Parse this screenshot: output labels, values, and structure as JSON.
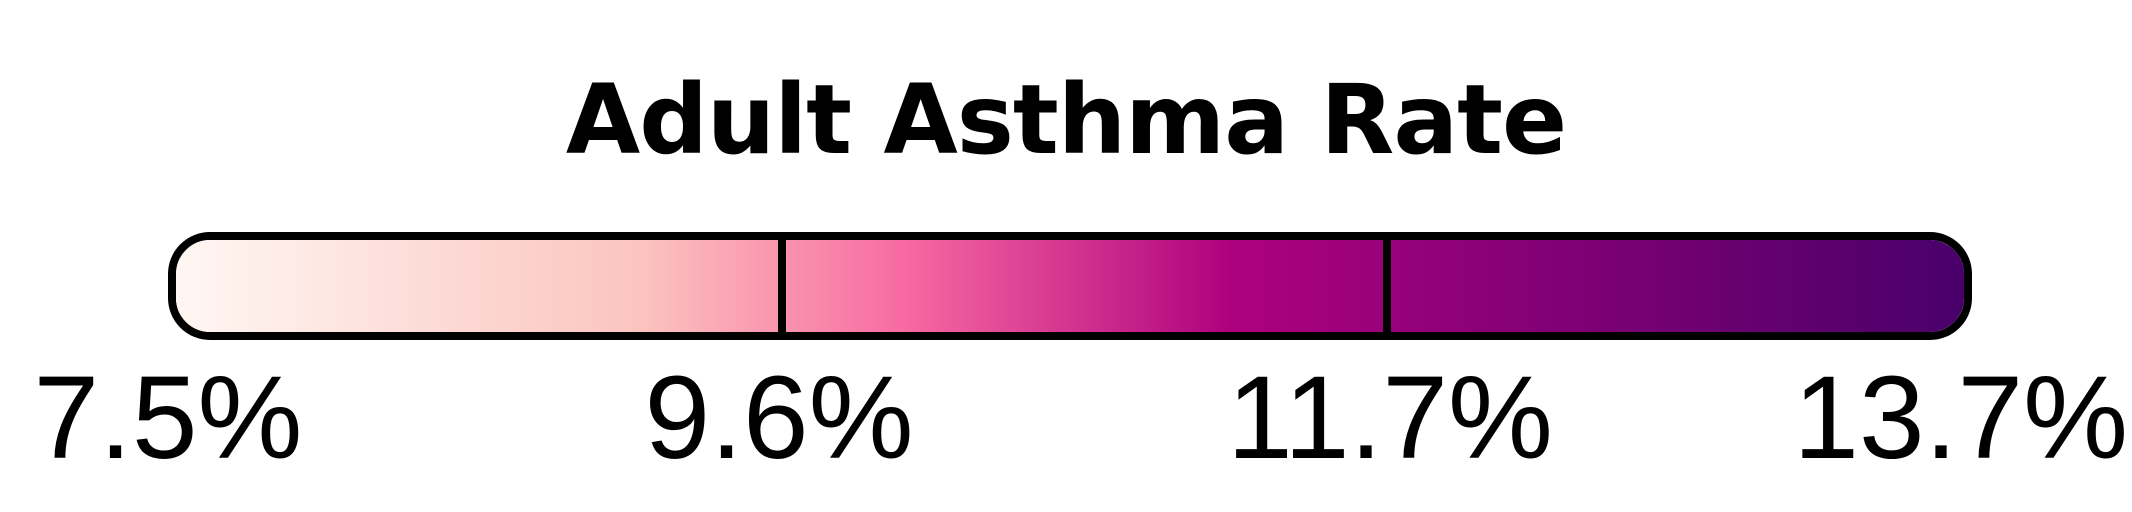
{
  "legend": {
    "title": "Adult Asthma Rate",
    "colors": [
      "#fff7f3",
      "#fbc4bf",
      "#f768a1",
      "#ae017e",
      "#49006a"
    ],
    "border_color": "#000000",
    "ticks": [
      {
        "value": 7.5,
        "label": "7.5%"
      },
      {
        "value": 9.6,
        "label": "9.6%"
      },
      {
        "value": 11.7,
        "label": "11.7%"
      },
      {
        "value": 13.7,
        "label": "13.7%"
      }
    ],
    "range": [
      7.5,
      13.7
    ]
  }
}
